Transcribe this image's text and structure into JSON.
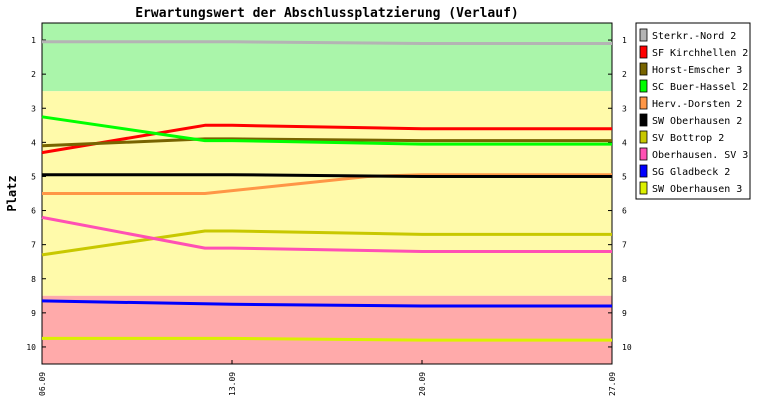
{
  "chart_data": {
    "type": "line",
    "title": "Erwartungswert der Abschlussplatzierung (Verlauf)",
    "xlabel": "",
    "ylabel": "Platz",
    "x": [
      "06.09",
      "13.09",
      "20.09",
      "27.09"
    ],
    "x_positions": [
      0,
      7,
      14,
      21
    ],
    "ylim": [
      10.5,
      0.5
    ],
    "y_ticks": [
      1,
      2,
      3,
      4,
      5,
      6,
      7,
      8,
      9,
      10
    ],
    "legend_position": "right",
    "bands": [
      {
        "from": 0.5,
        "to": 2.5,
        "color": "#aaf5aa"
      },
      {
        "from": 2.5,
        "to": 8.5,
        "color": "#fffaaa"
      },
      {
        "from": 8.5,
        "to": 10.5,
        "color": "#ffaaaa"
      }
    ],
    "series": [
      {
        "name": "Sterkr.-Nord 2",
        "color": "#b4b4b4",
        "points": [
          [
            0,
            1.05
          ],
          [
            7,
            1.05
          ],
          [
            14,
            1.1
          ],
          [
            21,
            1.1
          ]
        ]
      },
      {
        "name": "SF Kirchhellen 2",
        "color": "#ff0000",
        "points": [
          [
            0,
            4.3
          ],
          [
            6,
            3.5
          ],
          [
            7,
            3.5
          ],
          [
            14,
            3.6
          ],
          [
            21,
            3.6
          ]
        ]
      },
      {
        "name": "Horst-Emscher 3",
        "color": "#786400",
        "points": [
          [
            0,
            4.1
          ],
          [
            6,
            3.9
          ],
          [
            7,
            3.9
          ],
          [
            14,
            3.95
          ],
          [
            21,
            3.95
          ]
        ]
      },
      {
        "name": "SC Buer-Hassel 2",
        "color": "#00ff00",
        "points": [
          [
            0,
            3.25
          ],
          [
            6,
            3.95
          ],
          [
            7,
            3.95
          ],
          [
            14,
            4.05
          ],
          [
            21,
            4.05
          ]
        ]
      },
      {
        "name": "Herv.-Dorsten 2",
        "color": "#ff9646",
        "points": [
          [
            0,
            5.5
          ],
          [
            6,
            5.5
          ],
          [
            12,
            5.0
          ],
          [
            14,
            4.95
          ],
          [
            21,
            4.95
          ]
        ]
      },
      {
        "name": "SW Oberhausen 2",
        "color": "#000000",
        "points": [
          [
            0,
            4.95
          ],
          [
            7,
            4.95
          ],
          [
            14,
            5.0
          ],
          [
            21,
            5.0
          ]
        ]
      },
      {
        "name": "SV Bottrop 2",
        "color": "#c8c800",
        "points": [
          [
            0,
            7.3
          ],
          [
            6,
            6.6
          ],
          [
            7,
            6.6
          ],
          [
            14,
            6.7
          ],
          [
            21,
            6.7
          ]
        ]
      },
      {
        "name": "Oberhausen. SV 3",
        "color": "#ff50b4",
        "points": [
          [
            0,
            6.2
          ],
          [
            6,
            7.1
          ],
          [
            7,
            7.1
          ],
          [
            14,
            7.2
          ],
          [
            21,
            7.2
          ]
        ]
      },
      {
        "name": "SG Gladbeck 2",
        "color": "#0000ff",
        "points": [
          [
            0,
            8.65
          ],
          [
            7,
            8.75
          ],
          [
            14,
            8.8
          ],
          [
            21,
            8.8
          ]
        ]
      },
      {
        "name": "SW Oberhausen 3",
        "color": "#dcf000",
        "points": [
          [
            0,
            9.75
          ],
          [
            7,
            9.75
          ],
          [
            14,
            9.8
          ],
          [
            21,
            9.8
          ]
        ]
      }
    ]
  }
}
